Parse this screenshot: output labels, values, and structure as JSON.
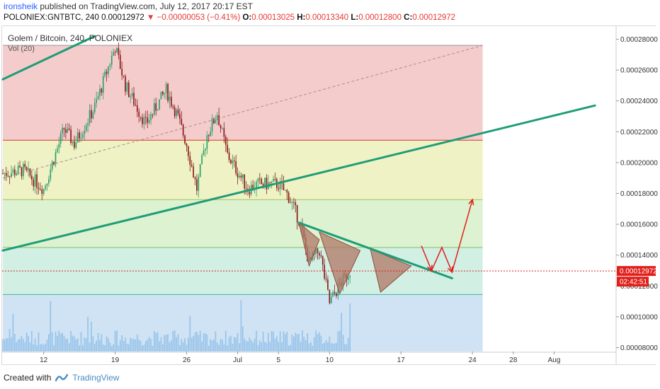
{
  "header": {
    "author": "ironsheik",
    "published": "published on TradingView.com, July 12, 2017 20:17 EST",
    "symbol_info": "POLONIEX:GNTBTC, 240",
    "last": "0.00012972",
    "change": "−0.00000053 (−0.41%)",
    "open_label": "O:",
    "open": "0.00013025",
    "high_label": "H:",
    "high": "0.00013340",
    "low_label": "L:",
    "low": "0.00012800",
    "close_label": "C:",
    "close": "0.00012972"
  },
  "legend": {
    "title": "Golem / Bitcoin, 240, POLONIEX",
    "volume": "Vol (20)"
  },
  "price_axis": {
    "ticks": [
      "0.00028000",
      "0.00026000",
      "0.00024000",
      "0.00022000",
      "0.00020000",
      "0.00018000",
      "0.00016000",
      "0.00014000",
      "0.00012000",
      "0.00010000",
      "0.00008000"
    ],
    "current_price": "0.00012972",
    "countdown": "02:42:51"
  },
  "colors": {
    "zone_red": "#f4cccc",
    "zone_yellow": "#eef2c5",
    "zone_green": "#dcf2d0",
    "zone_teal": "#d2efe4",
    "zone_blue": "#cfe3f4",
    "trendline": "#1f9c78",
    "arrow": "#e0201a",
    "pattern": "#b07766",
    "candle_up": "#2e9e6c",
    "candle_down": "#8a1c1c",
    "price_tag": "#e0201a",
    "volume": "#7fb5e6"
  },
  "chart_data": {
    "type": "candlestick",
    "title": "Golem / Bitcoin, 240, POLONIEX",
    "symbol": "POLONIEX:GNTBTC",
    "interval": "240",
    "x_ticks": [
      "12",
      "19",
      "26",
      "Jul",
      "5",
      "10",
      "17",
      "24",
      "28",
      "Aug"
    ],
    "ylim": [
      7.75e-05,
      0.000288
    ],
    "close_path": [
      {
        "date": "2017-06-08",
        "close": 0.000193
      },
      {
        "date": "2017-06-10",
        "close": 0.000195
      },
      {
        "date": "2017-06-12",
        "close": 0.000183
      },
      {
        "date": "2017-06-14",
        "close": 0.000222
      },
      {
        "date": "2017-06-15",
        "close": 0.000212
      },
      {
        "date": "2017-06-17",
        "close": 0.000236
      },
      {
        "date": "2017-06-19",
        "close": 0.000275
      },
      {
        "date": "2017-06-20",
        "close": 0.00025
      },
      {
        "date": "2017-06-22",
        "close": 0.000225
      },
      {
        "date": "2017-06-24",
        "close": 0.000247
      },
      {
        "date": "2017-06-25",
        "close": 0.000232
      },
      {
        "date": "2017-06-26",
        "close": 0.000212
      },
      {
        "date": "2017-06-27",
        "close": 0.000183
      },
      {
        "date": "2017-06-28",
        "close": 0.000218
      },
      {
        "date": "2017-06-29",
        "close": 0.000232
      },
      {
        "date": "2017-06-30",
        "close": 0.000205
      },
      {
        "date": "2017-07-02",
        "close": 0.000183
      },
      {
        "date": "2017-07-03",
        "close": 0.000186
      },
      {
        "date": "2017-07-05",
        "close": 0.000186
      },
      {
        "date": "2017-07-06",
        "close": 0.000178
      },
      {
        "date": "2017-07-07",
        "close": 0.000163
      },
      {
        "date": "2017-07-08",
        "close": 0.000135
      },
      {
        "date": "2017-07-09",
        "close": 0.000143
      },
      {
        "date": "2017-07-10",
        "close": 0.000109
      },
      {
        "date": "2017-07-11",
        "close": 0.000121
      },
      {
        "date": "2017-07-12",
        "close": 0.00012972
      }
    ],
    "last_bar": {
      "open": 0.00013025,
      "high": 0.0001334,
      "low": 0.000128,
      "close": 0.00012972
    },
    "fib_levels": [
      0.000276,
      0.0002145,
      0.000176,
      0.000145,
      0.0001145
    ],
    "trendlines": [
      {
        "name": "upper-trendline",
        "points": [
          [
            "2017-06-08",
            0.000254
          ],
          [
            "2017-06-17",
            0.000282
          ]
        ]
      },
      {
        "name": "support-trendline",
        "points": [
          [
            "2017-06-08",
            0.000143
          ],
          [
            "2017-08-05",
            0.000237
          ]
        ]
      },
      {
        "name": "dashed-projection",
        "points": [
          [
            "2017-06-08",
            0.00019
          ],
          [
            "2017-07-25",
            0.000276
          ]
        ]
      },
      {
        "name": "descending-resistance",
        "points": [
          [
            "2017-07-07",
            0.000161
          ],
          [
            "2017-07-22",
            0.000125
          ]
        ]
      }
    ],
    "projection_arrow": [
      [
        "2017-07-19",
        0.000146
      ],
      [
        "2017-07-20",
        0.00013
      ],
      [
        "2017-07-21",
        0.000145
      ],
      [
        "2017-07-22",
        0.000129
      ],
      [
        "2017-07-24",
        0.000176
      ]
    ],
    "pattern_triangles": [
      [
        [
          "2017-07-07",
          0.000161
        ],
        [
          "2017-07-08",
          0.000133
        ],
        [
          "2017-07-09",
          0.00015
        ]
      ],
      [
        [
          "2017-07-09",
          0.000155
        ],
        [
          "2017-07-11",
          0.000115
        ],
        [
          "2017-07-13",
          0.000143
        ]
      ],
      [
        [
          "2017-07-14",
          0.000144
        ],
        [
          "2017-07-15",
          0.000116
        ],
        [
          "2017-07-18",
          0.000133
        ]
      ]
    ],
    "volume_max_relative": 1.0
  },
  "footer": {
    "created_with": "Created with",
    "brand": "TradingView"
  }
}
